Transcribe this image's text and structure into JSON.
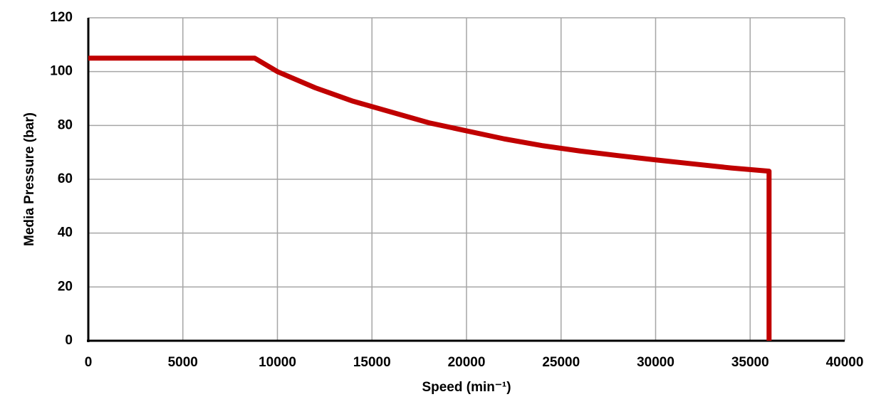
{
  "chart_data": {
    "type": "line",
    "x_label": "Speed (min⁻¹)",
    "y_label": "Media Pressure (bar)",
    "series": [
      {
        "color": "#c00000",
        "x": [
          0,
          8800,
          10000,
          12000,
          14000,
          16000,
          18000,
          20000,
          22000,
          24000,
          26000,
          28000,
          30000,
          32000,
          34000,
          36000,
          36000
        ],
        "values": [
          105,
          105,
          100,
          94,
          89,
          85,
          81,
          78,
          75,
          72.5,
          70.5,
          68.8,
          67.2,
          65.7,
          64.2,
          63,
          0
        ]
      }
    ],
    "xlim": [
      0,
      40000
    ],
    "xticks": [
      0,
      5000,
      10000,
      15000,
      20000,
      25000,
      30000,
      35000,
      40000
    ],
    "ylim": [
      0,
      120
    ],
    "yticks": [
      0,
      20,
      40,
      60,
      80,
      100,
      120
    ],
    "grid": true
  }
}
